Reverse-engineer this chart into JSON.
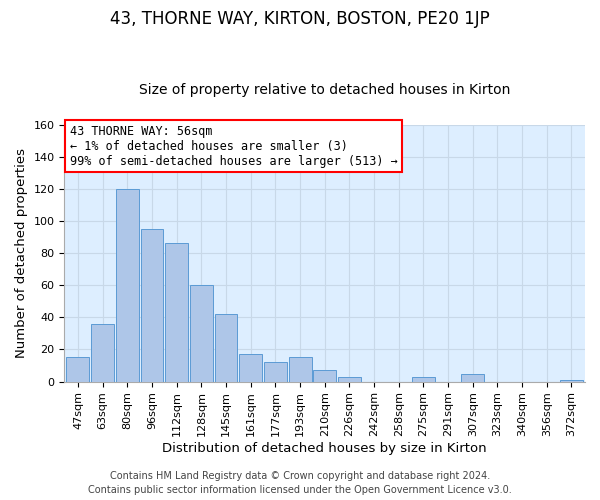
{
  "title": "43, THORNE WAY, KIRTON, BOSTON, PE20 1JP",
  "subtitle": "Size of property relative to detached houses in Kirton",
  "xlabel": "Distribution of detached houses by size in Kirton",
  "ylabel": "Number of detached properties",
  "bar_labels": [
    "47sqm",
    "63sqm",
    "80sqm",
    "96sqm",
    "112sqm",
    "128sqm",
    "145sqm",
    "161sqm",
    "177sqm",
    "193sqm",
    "210sqm",
    "226sqm",
    "242sqm",
    "258sqm",
    "275sqm",
    "291sqm",
    "307sqm",
    "323sqm",
    "340sqm",
    "356sqm",
    "372sqm"
  ],
  "bar_values": [
    15,
    36,
    120,
    95,
    86,
    60,
    42,
    17,
    12,
    15,
    7,
    3,
    0,
    0,
    3,
    0,
    5,
    0,
    0,
    0,
    1
  ],
  "bar_color": "#aec6e8",
  "bar_edge_color": "#5b9bd5",
  "ylim": [
    0,
    160
  ],
  "yticks": [
    0,
    20,
    40,
    60,
    80,
    100,
    120,
    140,
    160
  ],
  "annotation_title": "43 THORNE WAY: 56sqm",
  "annotation_line1": "← 1% of detached houses are smaller (3)",
  "annotation_line2": "99% of semi-detached houses are larger (513) →",
  "annotation_box_color": "#ffffff",
  "annotation_border_color": "#ff0000",
  "footer1": "Contains HM Land Registry data © Crown copyright and database right 2024.",
  "footer2": "Contains public sector information licensed under the Open Government Licence v3.0.",
  "background_color": "#ffffff",
  "plot_bg_color": "#ddeeff",
  "grid_color": "#c8d8e8",
  "title_fontsize": 12,
  "subtitle_fontsize": 10,
  "axis_label_fontsize": 9.5,
  "tick_fontsize": 8,
  "annotation_fontsize": 8.5,
  "footer_fontsize": 7
}
